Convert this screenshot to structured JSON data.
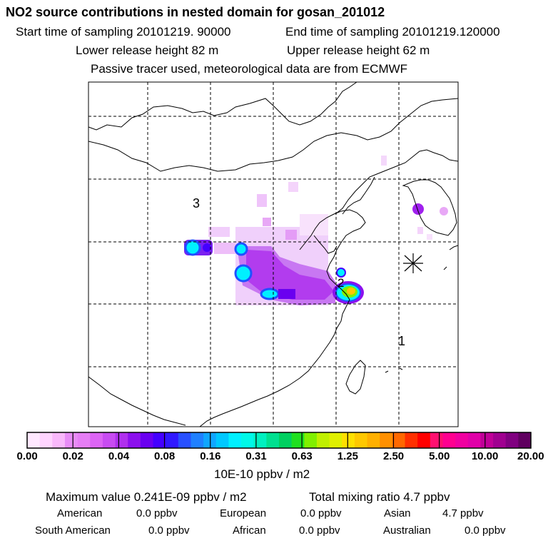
{
  "header": {
    "title": "NO2 source contributions in nested domain for gosan_201012",
    "start_label": "Start time of sampling 20101219. 90000",
    "end_label": "End time of sampling 20101219.120000",
    "lower_release": "Lower release height   82 m",
    "upper_release": "Upper release height   62 m",
    "tracer_note": "Passive tracer used, meteorological data are from ECMWF"
  },
  "chart_data": {
    "type": "heatmap",
    "title": "NO2 source contributions in nested domain for gosan_201012",
    "units": "10E-10 ppbv / m2",
    "grid": true,
    "colorbar": {
      "tick_labels": [
        "0.00",
        "0.02",
        "0.04",
        "0.08",
        "0.16",
        "0.31",
        "0.63",
        "1.25",
        "2.50",
        "5.00",
        "10.00",
        "20.00"
      ],
      "colors": [
        "#ffe8ff",
        "#ffd4ff",
        "#f9b8fb",
        "#e88cf6",
        "#e67ef5",
        "#dc64f4",
        "#c84cf2",
        "#b030ee",
        "#8c10ee",
        "#6a00f0",
        "#4400ff",
        "#3018ff",
        "#2850ff",
        "#2080ff",
        "#10a6ff",
        "#00c8ff",
        "#00f0ff",
        "#00f8e8",
        "#00f0c0",
        "#00e090",
        "#00d060",
        "#20e020",
        "#80f000",
        "#c0f000",
        "#e0f000",
        "#ffe000",
        "#ffc800",
        "#ffb000",
        "#ff9000",
        "#ff6800",
        "#ff3000",
        "#ff0000",
        "#ff1070",
        "#ff0090",
        "#f000a0",
        "#e000a8",
        "#c00098",
        "#a00090",
        "#800080",
        "#600060"
      ]
    },
    "region_labels": [
      "1",
      "2",
      "3"
    ],
    "receptor": "gosan"
  },
  "footer": {
    "max_value": "Maximum value  0.241E-09 ppbv / m2",
    "total_mixing": "Total mixing ratio        4.7 ppbv",
    "contributions": [
      {
        "name": "American",
        "value": "0.0 ppbv"
      },
      {
        "name": "European",
        "value": "0.0 ppbv"
      },
      {
        "name": "Asian",
        "value": "4.7 ppbv"
      },
      {
        "name": "South American",
        "value": "0.0 ppbv"
      },
      {
        "name": "African",
        "value": "0.0 ppbv"
      },
      {
        "name": "Australian",
        "value": "0.0 ppbv"
      }
    ]
  }
}
